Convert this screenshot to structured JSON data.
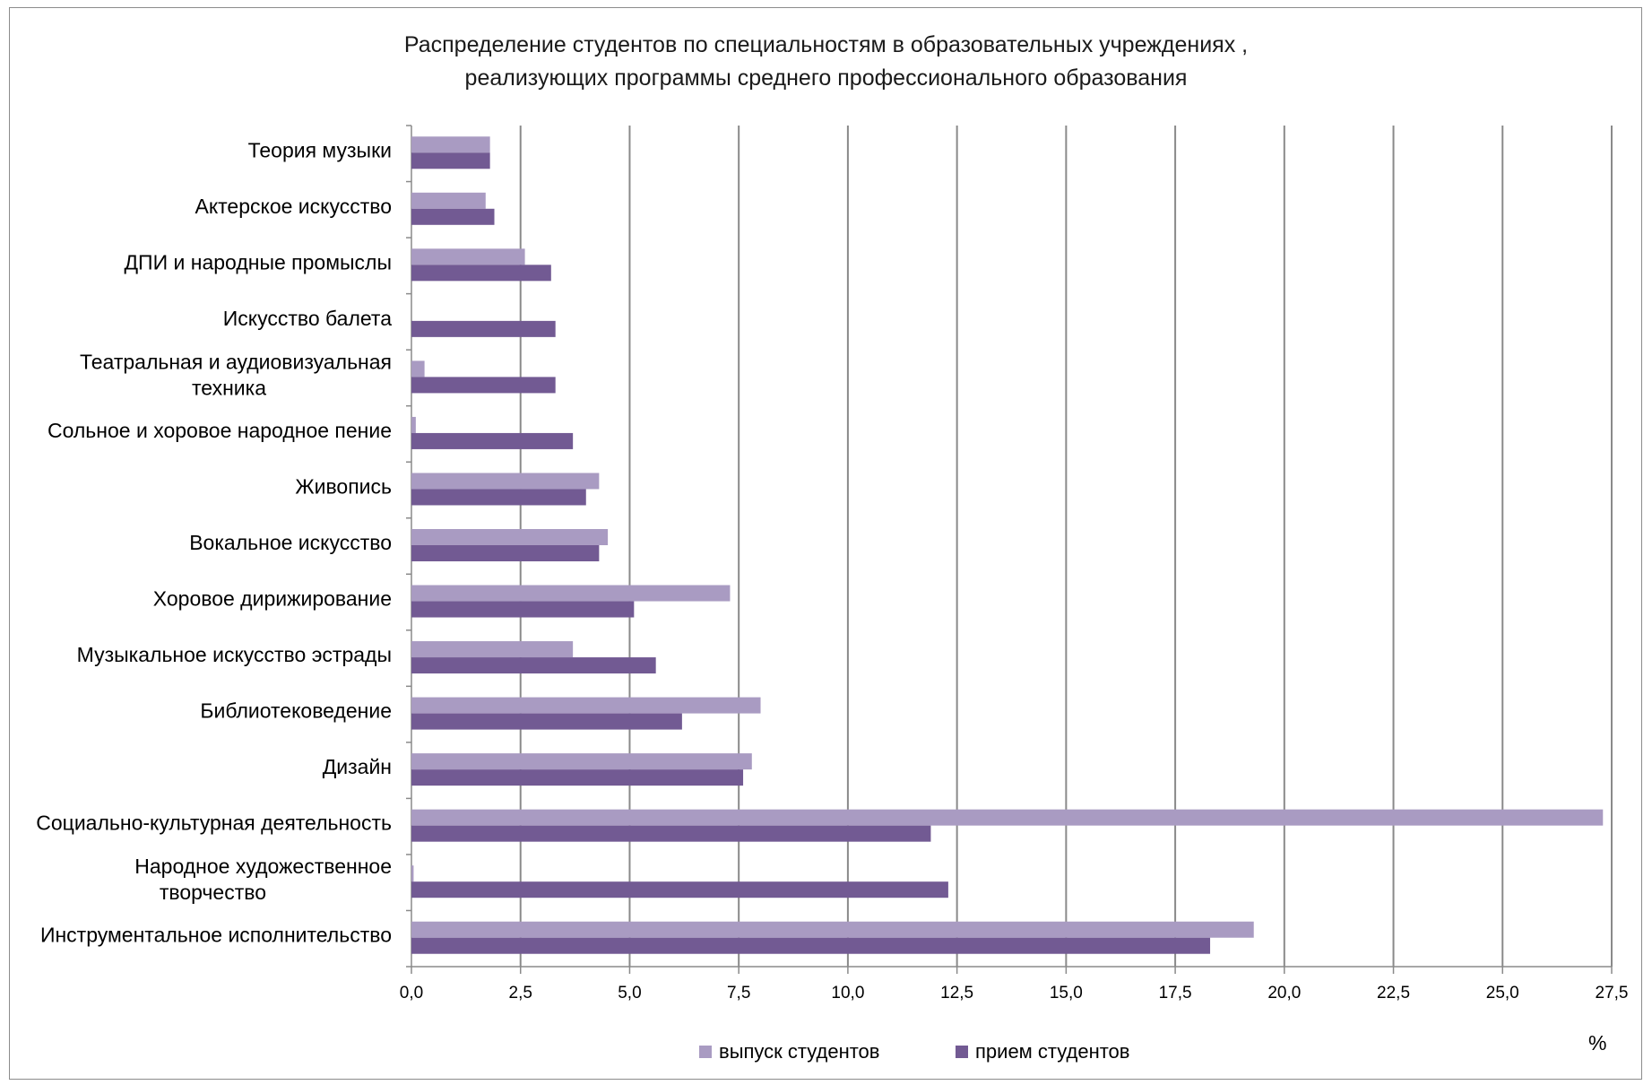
{
  "chart_data": {
    "type": "bar",
    "orientation": "horizontal",
    "title_line1": "Распределение студентов по специальностям в образовательных учреждениях ,",
    "title_line2": "реализующих программы среднего профессионального образования",
    "unit_label": "%",
    "xlim": [
      0,
      27.5
    ],
    "x_ticks": [
      "0,0",
      "2,5",
      "5,0",
      "7,5",
      "10,0",
      "12,5",
      "15,0",
      "17,5",
      "20,0",
      "22,5",
      "25,0",
      "27,5"
    ],
    "grid": "vertical",
    "legend_position": "bottom",
    "categories": [
      [
        "Теория музыки"
      ],
      [
        "Актерское искусство"
      ],
      [
        "ДПИ  и народные промыслы"
      ],
      [
        "Искусство балета"
      ],
      [
        "Театральная и аудиовизуальная",
        "техника"
      ],
      [
        "Сольное и хоровое народное пение"
      ],
      [
        "Живопись"
      ],
      [
        "Вокальное искусство"
      ],
      [
        "Хоровое дирижирование"
      ],
      [
        "Музыкальное искусство эстрады"
      ],
      [
        "Библиотековедение"
      ],
      [
        "Дизайн"
      ],
      [
        "Социально-культурная деятельность"
      ],
      [
        "Народное художественное",
        "творчество"
      ],
      [
        "Инструментальное исполнительство"
      ]
    ],
    "series": [
      {
        "name": "выпуск студентов",
        "color": "#a99bc2",
        "values": [
          1.8,
          1.7,
          2.6,
          0.0,
          0.3,
          0.1,
          4.3,
          4.5,
          7.3,
          3.7,
          8.0,
          7.8,
          27.3,
          0.05,
          19.3
        ]
      },
      {
        "name": "прием студентов",
        "color": "#725a93",
        "values": [
          1.8,
          1.9,
          3.2,
          3.3,
          3.3,
          3.7,
          4.0,
          4.3,
          5.1,
          5.6,
          6.2,
          7.6,
          11.9,
          12.3,
          18.3
        ]
      }
    ]
  }
}
